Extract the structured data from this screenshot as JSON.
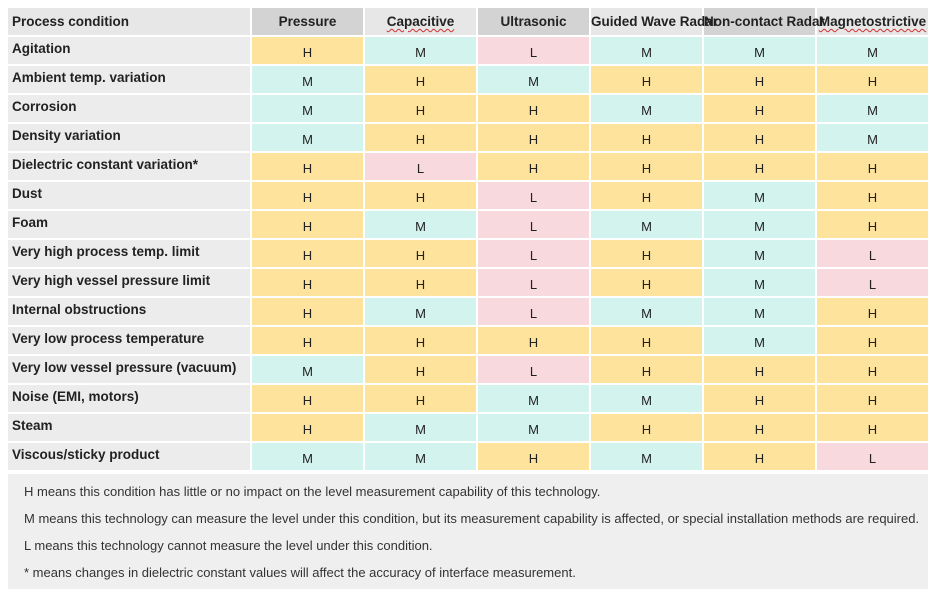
{
  "table": {
    "headers": [
      "Process condition",
      "Pressure",
      "Capacitive",
      "Ultrasonic",
      "Guided Wave Radar",
      "Non-contact Radar",
      "Magnetostrictive"
    ],
    "rows": [
      {
        "condition": "Agitation",
        "values": [
          "H",
          "M",
          "L",
          "M",
          "M",
          "M"
        ]
      },
      {
        "condition": "Ambient temp. variation",
        "values": [
          "M",
          "H",
          "M",
          "H",
          "H",
          "H"
        ]
      },
      {
        "condition": "Corrosion",
        "values": [
          "M",
          "H",
          "H",
          "M",
          "H",
          "M"
        ]
      },
      {
        "condition": "Density variation",
        "values": [
          "M",
          "H",
          "H",
          "H",
          "H",
          "M"
        ]
      },
      {
        "condition": "Dielectric constant variation*",
        "values": [
          "H",
          "L",
          "H",
          "H",
          "H",
          "H"
        ]
      },
      {
        "condition": "Dust",
        "values": [
          "H",
          "H",
          "L",
          "H",
          "M",
          "H"
        ]
      },
      {
        "condition": "Foam",
        "values": [
          "H",
          "M",
          "L",
          "M",
          "M",
          "H"
        ]
      },
      {
        "condition": "Very high process temp. limit",
        "values": [
          "H",
          "H",
          "L",
          "H",
          "M",
          "L"
        ]
      },
      {
        "condition": "Very high vessel pressure limit",
        "values": [
          "H",
          "H",
          "L",
          "H",
          "M",
          "L"
        ]
      },
      {
        "condition": "Internal obstructions",
        "values": [
          "H",
          "M",
          "L",
          "M",
          "M",
          "H"
        ]
      },
      {
        "condition": "Very low process temperature",
        "values": [
          "H",
          "H",
          "H",
          "H",
          "M",
          "H"
        ]
      },
      {
        "condition": "Very low vessel pressure (vacuum)",
        "values": [
          "M",
          "H",
          "L",
          "H",
          "H",
          "H"
        ]
      },
      {
        "condition": "Noise (EMI, motors)",
        "values": [
          "H",
          "H",
          "M",
          "M",
          "H",
          "H"
        ]
      },
      {
        "condition": "Steam",
        "values": [
          "H",
          "M",
          "M",
          "H",
          "H",
          "H"
        ]
      },
      {
        "condition": "Viscous/sticky product",
        "values": [
          "M",
          "M",
          "H",
          "M",
          "H",
          "L"
        ]
      }
    ]
  },
  "notes": [
    "H means this condition has little or no impact on the level measurement capability of this technology.",
    "M means this technology can measure the level under this condition, but its measurement capability is affected, or special installation methods are required.",
    "L means this technology cannot measure the level under this condition.",
    "* means changes in dielectric constant values will affect the accuracy of interface measurement."
  ],
  "colors": {
    "H": "#fde39c",
    "M": "#d3f3ee",
    "L": "#f8d9de"
  }
}
